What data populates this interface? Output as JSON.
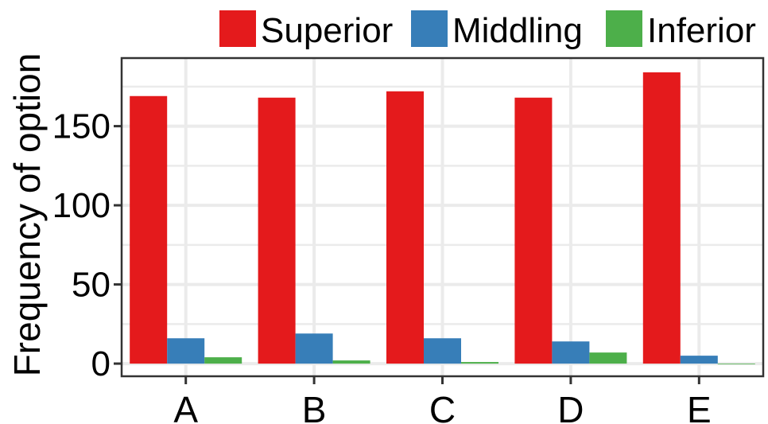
{
  "chart_data": {
    "type": "bar",
    "categories": [
      "A",
      "B",
      "C",
      "D",
      "E"
    ],
    "series": [
      {
        "name": "Superior",
        "color": "#e41a1c",
        "values": [
          169,
          168,
          172,
          168,
          184
        ]
      },
      {
        "name": "Middling",
        "color": "#377eb8",
        "values": [
          16,
          19,
          16,
          14,
          5
        ]
      },
      {
        "name": "Inferior",
        "color": "#4daf4a",
        "values": [
          4,
          2,
          1,
          7,
          0
        ]
      }
    ],
    "title": "",
    "xlabel": "",
    "ylabel": "Frequency of option",
    "yticks": [
      0,
      50,
      100,
      150
    ],
    "ylim": [
      -8,
      193
    ],
    "grid": true,
    "legend_position": "top"
  }
}
